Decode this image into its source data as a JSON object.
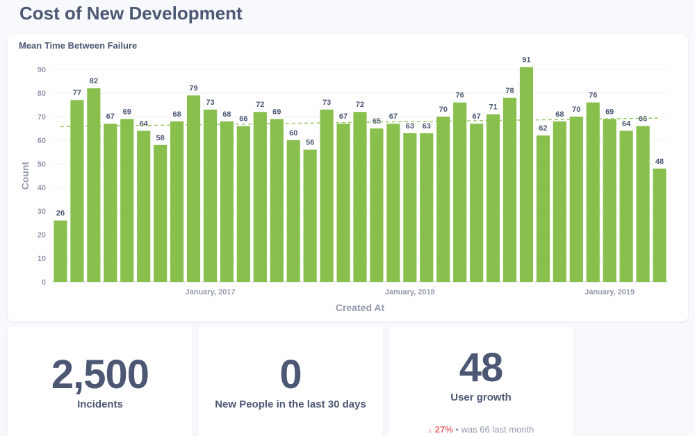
{
  "page": {
    "title": "Cost of New Development"
  },
  "chart_card": {
    "title": "Mean Time Between Failure"
  },
  "chart_data": {
    "type": "bar",
    "title": "Mean Time Between Failure",
    "xlabel": "Created At",
    "ylabel": "Count",
    "ylim": [
      0,
      90
    ],
    "yticks": [
      0,
      10,
      20,
      30,
      40,
      50,
      60,
      70,
      80,
      90
    ],
    "x_tick_labels": [
      {
        "label": "January, 2017",
        "index": 9
      },
      {
        "label": "January, 2018",
        "index": 21
      },
      {
        "label": "January, 2019",
        "index": 33
      }
    ],
    "values": [
      26,
      77,
      82,
      67,
      69,
      64,
      58,
      68,
      79,
      73,
      68,
      66,
      72,
      69,
      60,
      56,
      73,
      67,
      72,
      65,
      67,
      63,
      63,
      70,
      76,
      67,
      71,
      78,
      91,
      62,
      68,
      70,
      76,
      69,
      64,
      66,
      48
    ],
    "trendline": true,
    "grid": true,
    "bar_color": "#88bf4d",
    "trend_color": "#88bf4d"
  },
  "scalars": [
    {
      "value": "2,500",
      "label": "Incidents"
    },
    {
      "value": "0",
      "label": "New People in the last 30 days"
    },
    {
      "value": "48",
      "label": "User growth"
    }
  ],
  "trend": {
    "arrow": "↓",
    "percent": "27%",
    "separator": "•",
    "previous": "was 66",
    "period": "last month",
    "color": "#ed6e6e"
  }
}
